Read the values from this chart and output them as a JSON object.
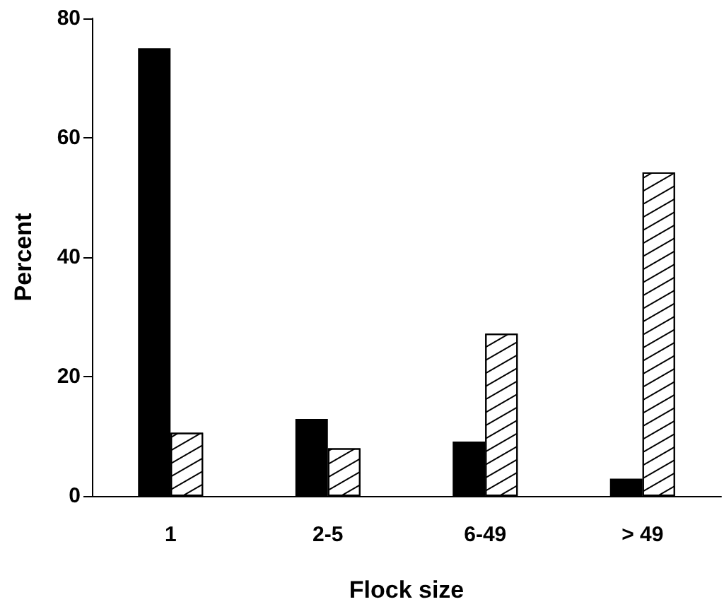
{
  "chart_data": {
    "type": "bar",
    "xlabel": "Flock size",
    "ylabel": "Percent",
    "categories": [
      "1",
      "2-5",
      "6-49",
      "> 49"
    ],
    "series": [
      {
        "color": "#000000",
        "values": [
          75,
          12.9,
          9.1,
          2.9
        ]
      },
      {
        "color": "#ffffff",
        "values": [
          10.6,
          8.0,
          27.2,
          54.2
        ]
      }
    ],
    "ylim": [
      0,
      80
    ],
    "yticks": [
      0,
      20,
      40,
      60,
      80
    ],
    "grid": false
  }
}
